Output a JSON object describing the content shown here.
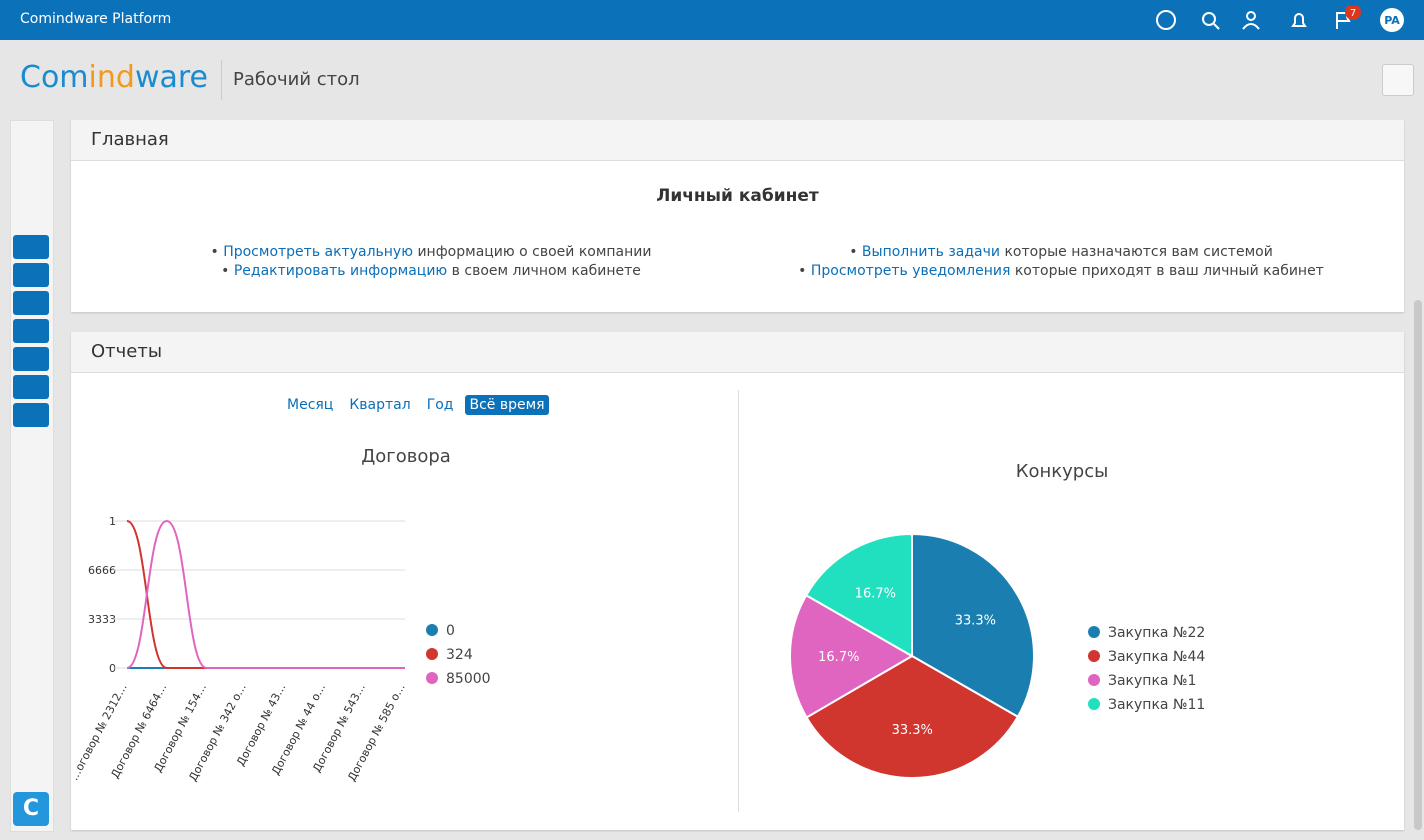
{
  "topbar": {
    "title": "Comindware Platform",
    "badge": "7",
    "avatar": "PA"
  },
  "header": {
    "logo_parts": [
      "Com",
      "ind",
      "ware"
    ],
    "page_title": "Рабочий стол"
  },
  "sidebar": {
    "app_badge": "C"
  },
  "main_panel": {
    "title": "Главная",
    "heading": "Личный кабинет",
    "items": [
      {
        "link": "Просмотреть актуальную",
        "text": "информацию о своей компании"
      },
      {
        "link": "Редактировать информацию",
        "text": "в своем личном кабинете"
      },
      {
        "link": "Выполнить задачи",
        "text": "которые назначаются вам системой"
      },
      {
        "link": "Просмотреть уведомления",
        "text": "которые приходят в ваш личный кабинет"
      }
    ]
  },
  "reports_panel": {
    "title": "Отчеты",
    "periods": [
      "Месяц",
      "Квартал",
      "Год",
      "Всё время"
    ],
    "active_period": 3
  },
  "chart_data": [
    {
      "type": "line",
      "title": "Договора",
      "categories": [
        "…оговор № 2312…",
        "Договор № 6464…",
        "Договор № 154…",
        "Договор № 342 о…",
        "Договор № 43…",
        "Договор № 44 о…",
        "Договор № 543…",
        "Договор № 585 о…"
      ],
      "series": [
        {
          "name": "0",
          "color": "#1a7fb0",
          "values": [
            0,
            0,
            0,
            0,
            0,
            0,
            0,
            0
          ]
        },
        {
          "name": "324",
          "color": "#d0352e",
          "values": [
            1,
            0,
            0,
            0,
            0,
            0,
            0,
            0
          ]
        },
        {
          "name": "85000",
          "color": "#e065c0",
          "values": [
            0,
            1,
            0,
            0,
            0,
            0,
            0,
            0
          ]
        }
      ],
      "ylim": [
        0,
        1
      ],
      "yticks": [
        0,
        {
          "value": 0.3333,
          "label": "3333"
        },
        {
          "value": 0.6666,
          "label": "6666"
        },
        1
      ],
      "grid": true
    },
    {
      "type": "pie",
      "title": "Конкурсы",
      "categories": [
        "Закупка №22",
        "Закупка №44",
        "Закупка №1",
        "Закупка №11"
      ],
      "values": [
        33.3,
        33.3,
        16.7,
        16.7
      ],
      "value_labels": [
        "33.3%",
        "33.3%",
        "16.7%",
        "16.7%"
      ],
      "colors": [
        "#1a7fb0",
        "#d0352e",
        "#e065c0",
        "#21e0c0"
      ]
    }
  ]
}
